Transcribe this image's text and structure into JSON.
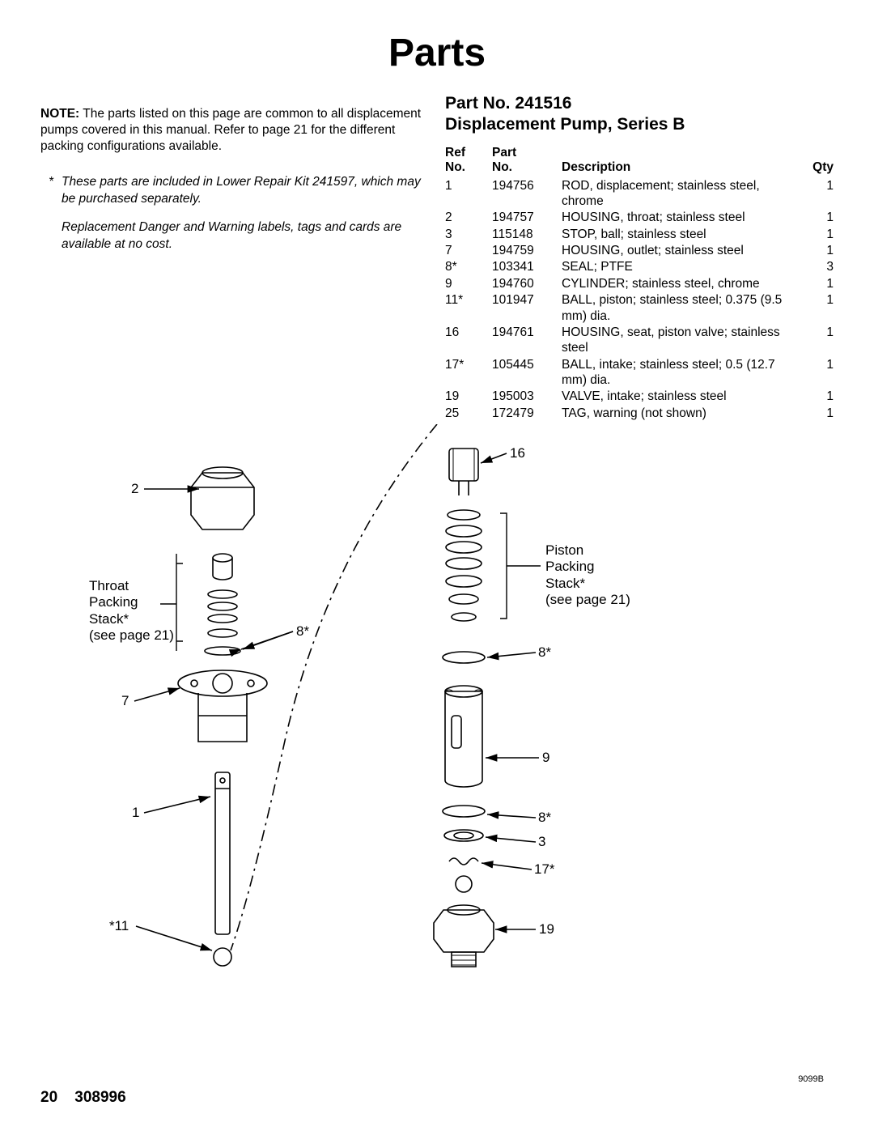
{
  "title": "Parts",
  "note": {
    "label": "NOTE:",
    "text": "The parts listed on this page are common to all displacement pumps covered in this manual. Refer to page 21 for the different packing configurations available."
  },
  "footnotes": [
    {
      "marker": "*",
      "text": "These parts are included in Lower Repair Kit 241597, which may be purchased separately."
    },
    {
      "marker": "",
      "text": "Replacement Danger and Warning labels, tags and cards are available at no cost."
    }
  ],
  "part_heading": {
    "line1": "Part No. 241516",
    "line2": "Displacement Pump, Series B"
  },
  "table": {
    "headers": {
      "ref1": "Ref",
      "ref2": "No.",
      "pn1": "Part",
      "pn2": "No.",
      "desc": "Description",
      "qty": "Qty"
    },
    "rows": [
      {
        "ref": "1",
        "pn": "194756",
        "desc": "ROD, displacement; stainless steel, chrome",
        "qty": "1"
      },
      {
        "ref": "2",
        "pn": "194757",
        "desc": "HOUSING, throat; stainless steel",
        "qty": "1"
      },
      {
        "ref": "3",
        "pn": "115148",
        "desc": "STOP, ball; stainless steel",
        "qty": "1"
      },
      {
        "ref": "7",
        "pn": "194759",
        "desc": "HOUSING, outlet; stainless steel",
        "qty": "1"
      },
      {
        "ref": "8*",
        "pn": "103341",
        "desc": "SEAL; PTFE",
        "qty": "3"
      },
      {
        "ref": "9",
        "pn": "194760",
        "desc": "CYLINDER; stainless steel, chrome",
        "qty": "1"
      },
      {
        "ref": "11*",
        "pn": "101947",
        "desc": "BALL, piston; stainless steel; 0.375  (9.5 mm) dia.",
        "qty": "1"
      },
      {
        "ref": "16",
        "pn": "194761",
        "desc": "HOUSING, seat, piston valve; stainless steel",
        "qty": "1"
      },
      {
        "ref": "17*",
        "pn": "105445",
        "desc": "BALL, intake; stainless steel; 0.5  (12.7 mm) dia.",
        "qty": "1"
      },
      {
        "ref": "19",
        "pn": "195003",
        "desc": "VALVE, intake; stainless steel",
        "qty": "1"
      },
      {
        "ref": "25",
        "pn": "172479",
        "desc": "TAG, warning (not shown)",
        "qty": "1"
      }
    ]
  },
  "callouts": {
    "c16": "16",
    "c2": "2",
    "throat_stack": "Throat\nPacking\nStack*\n(see page 21)",
    "piston_stack": "Piston\nPacking\nStack*\n(see page 21)",
    "c8a": "8*",
    "c8b": "8*",
    "c8c": "8*",
    "c7": "7",
    "c9": "9",
    "c3": "3",
    "c17": "17*",
    "c1": "1",
    "c11": "*11",
    "c19": "19"
  },
  "figure_no": "9099B",
  "footer": {
    "page": "20",
    "doc": "308996"
  },
  "colors": {
    "fg": "#000000",
    "bg": "#ffffff"
  },
  "stroke": {
    "thin": 1.2,
    "med": 1.6
  }
}
